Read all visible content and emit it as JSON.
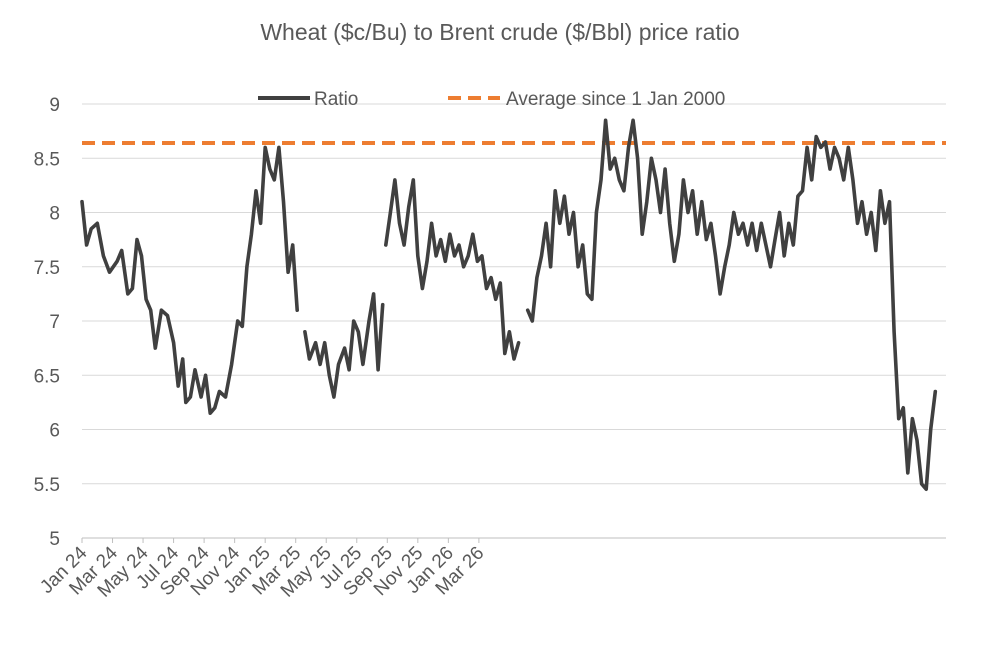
{
  "chart_data": {
    "type": "line",
    "title": "Wheat ($c/Bu) to Brent crude ($/Bbl) price ratio",
    "xlabel": "",
    "ylabel": "",
    "ylim": [
      5,
      9
    ],
    "yticks": [
      "5",
      "5.5",
      "6",
      "6.5",
      "7",
      "7.5",
      "8",
      "8.5",
      "9"
    ],
    "xticks": [
      "Jan 24",
      "Mar 24",
      "May 24",
      "Jul 24",
      "Sep 24",
      "Nov 24",
      "Jan 25",
      "Mar 25",
      "May 25",
      "Jul 25",
      "Sep 25",
      "Nov 25",
      "Jan 26",
      "Mar 26"
    ],
    "grid": "horizontal",
    "legend_position": "top",
    "average": {
      "name": "Average since 1 Jan 2000",
      "value": 8.64,
      "color": "#ED7D31",
      "style": "dashed"
    },
    "series": [
      {
        "name": "Ratio",
        "color": "#404040",
        "segments": [
          [
            [
              0,
              8.1
            ],
            [
              0.3,
              7.7
            ],
            [
              0.6,
              7.85
            ],
            [
              1.0,
              7.9
            ],
            [
              1.4,
              7.6
            ],
            [
              1.8,
              7.45
            ],
            [
              2.3,
              7.55
            ],
            [
              2.6,
              7.65
            ],
            [
              3.0,
              7.25
            ],
            [
              3.3,
              7.3
            ],
            [
              3.6,
              7.75
            ],
            [
              3.9,
              7.6
            ],
            [
              4.2,
              7.2
            ],
            [
              4.5,
              7.1
            ],
            [
              4.8,
              6.75
            ],
            [
              5.2,
              7.1
            ],
            [
              5.6,
              7.05
            ],
            [
              6.0,
              6.8
            ],
            [
              6.3,
              6.4
            ],
            [
              6.6,
              6.65
            ],
            [
              6.8,
              6.25
            ],
            [
              7.1,
              6.3
            ],
            [
              7.4,
              6.55
            ],
            [
              7.8,
              6.3
            ],
            [
              8.1,
              6.5
            ],
            [
              8.4,
              6.15
            ],
            [
              8.7,
              6.2
            ],
            [
              9.0,
              6.35
            ],
            [
              9.4,
              6.3
            ],
            [
              9.8,
              6.6
            ],
            [
              10.2,
              7.0
            ],
            [
              10.5,
              6.95
            ],
            [
              10.8,
              7.5
            ],
            [
              11.1,
              7.8
            ],
            [
              11.4,
              8.2
            ],
            [
              11.7,
              7.9
            ],
            [
              12.0,
              8.6
            ],
            [
              12.3,
              8.4
            ],
            [
              12.6,
              8.3
            ],
            [
              12.9,
              8.6
            ],
            [
              13.2,
              8.1
            ],
            [
              13.5,
              7.45
            ],
            [
              13.8,
              7.7
            ],
            [
              14.1,
              7.1
            ]
          ],
          [
            [
              14.6,
              6.9
            ],
            [
              14.9,
              6.65
            ],
            [
              15.3,
              6.8
            ],
            [
              15.6,
              6.6
            ],
            [
              15.9,
              6.8
            ],
            [
              16.2,
              6.5
            ],
            [
              16.5,
              6.3
            ],
            [
              16.8,
              6.6
            ],
            [
              17.2,
              6.75
            ],
            [
              17.5,
              6.55
            ],
            [
              17.8,
              7.0
            ],
            [
              18.1,
              6.9
            ],
            [
              18.4,
              6.6
            ],
            [
              18.8,
              7.0
            ],
            [
              19.1,
              7.25
            ],
            [
              19.4,
              6.55
            ],
            [
              19.7,
              7.15
            ]
          ],
          [
            [
              19.9,
              7.7
            ],
            [
              20.2,
              8.0
            ],
            [
              20.5,
              8.3
            ],
            [
              20.8,
              7.9
            ],
            [
              21.1,
              7.7
            ],
            [
              21.4,
              8.05
            ],
            [
              21.7,
              8.3
            ],
            [
              22.0,
              7.6
            ],
            [
              22.3,
              7.3
            ],
            [
              22.6,
              7.55
            ],
            [
              22.9,
              7.9
            ],
            [
              23.2,
              7.6
            ],
            [
              23.5,
              7.75
            ],
            [
              23.8,
              7.55
            ],
            [
              24.1,
              7.8
            ],
            [
              24.4,
              7.6
            ],
            [
              24.7,
              7.7
            ],
            [
              25.0,
              7.5
            ],
            [
              25.3,
              7.6
            ],
            [
              25.6,
              7.8
            ],
            [
              25.9,
              7.55
            ],
            [
              26.2,
              7.6
            ],
            [
              26.5,
              7.3
            ],
            [
              26.8,
              7.4
            ],
            [
              27.1,
              7.2
            ],
            [
              27.4,
              7.35
            ],
            [
              27.7,
              6.7
            ],
            [
              28.0,
              6.9
            ],
            [
              28.3,
              6.65
            ],
            [
              28.6,
              6.8
            ]
          ],
          [
            [
              29.2,
              7.1
            ],
            [
              29.5,
              7.0
            ],
            [
              29.8,
              7.4
            ],
            [
              30.1,
              7.6
            ],
            [
              30.4,
              7.9
            ],
            [
              30.7,
              7.5
            ],
            [
              31.0,
              8.2
            ],
            [
              31.3,
              7.9
            ],
            [
              31.6,
              8.15
            ],
            [
              31.9,
              7.8
            ],
            [
              32.2,
              8.0
            ],
            [
              32.5,
              7.5
            ],
            [
              32.8,
              7.7
            ],
            [
              33.1,
              7.25
            ],
            [
              33.4,
              7.2
            ],
            [
              33.7,
              8.0
            ],
            [
              34.0,
              8.3
            ],
            [
              34.3,
              8.85
            ],
            [
              34.6,
              8.4
            ],
            [
              34.9,
              8.5
            ],
            [
              35.2,
              8.3
            ],
            [
              35.5,
              8.2
            ],
            [
              35.8,
              8.6
            ],
            [
              36.1,
              8.85
            ],
            [
              36.4,
              8.5
            ],
            [
              36.7,
              7.8
            ],
            [
              37.0,
              8.1
            ],
            [
              37.3,
              8.5
            ],
            [
              37.6,
              8.3
            ],
            [
              37.9,
              8.0
            ],
            [
              38.2,
              8.4
            ],
            [
              38.5,
              7.9
            ],
            [
              38.8,
              7.55
            ],
            [
              39.1,
              7.8
            ],
            [
              39.4,
              8.3
            ],
            [
              39.7,
              8.0
            ],
            [
              40.0,
              8.2
            ],
            [
              40.3,
              7.8
            ],
            [
              40.6,
              8.1
            ],
            [
              40.9,
              7.75
            ],
            [
              41.2,
              7.9
            ],
            [
              41.5,
              7.6
            ],
            [
              41.8,
              7.25
            ],
            [
              42.1,
              7.5
            ],
            [
              42.4,
              7.7
            ],
            [
              42.7,
              8.0
            ],
            [
              43.0,
              7.8
            ],
            [
              43.3,
              7.9
            ],
            [
              43.6,
              7.7
            ],
            [
              43.9,
              7.9
            ],
            [
              44.2,
              7.65
            ],
            [
              44.5,
              7.9
            ],
            [
              44.8,
              7.7
            ],
            [
              45.1,
              7.5
            ],
            [
              45.4,
              7.75
            ],
            [
              45.7,
              8.0
            ],
            [
              46.0,
              7.6
            ],
            [
              46.3,
              7.9
            ],
            [
              46.6,
              7.7
            ],
            [
              46.9,
              8.15
            ],
            [
              47.2,
              8.2
            ],
            [
              47.5,
              8.6
            ],
            [
              47.8,
              8.3
            ],
            [
              48.1,
              8.7
            ],
            [
              48.4,
              8.6
            ],
            [
              48.7,
              8.65
            ],
            [
              49.0,
              8.4
            ],
            [
              49.3,
              8.6
            ],
            [
              49.6,
              8.5
            ],
            [
              49.9,
              8.3
            ],
            [
              50.2,
              8.6
            ],
            [
              50.5,
              8.3
            ],
            [
              50.8,
              7.9
            ],
            [
              51.1,
              8.1
            ],
            [
              51.4,
              7.8
            ],
            [
              51.7,
              8.0
            ],
            [
              52.0,
              7.65
            ],
            [
              52.3,
              8.2
            ],
            [
              52.6,
              7.9
            ],
            [
              52.9,
              8.1
            ],
            [
              53.2,
              6.9
            ],
            [
              53.5,
              6.1
            ],
            [
              53.8,
              6.2
            ],
            [
              54.1,
              5.6
            ],
            [
              54.4,
              6.1
            ],
            [
              54.7,
              5.9
            ],
            [
              55.0,
              5.5
            ],
            [
              55.3,
              5.45
            ],
            [
              55.6,
              6.0
            ],
            [
              55.9,
              6.35
            ]
          ]
        ]
      }
    ]
  }
}
